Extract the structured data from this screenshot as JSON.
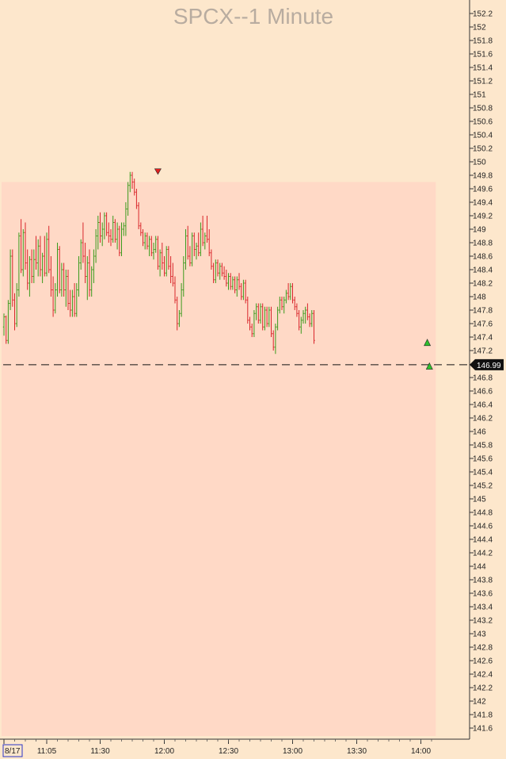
{
  "chart_data": {
    "type": "candlestick",
    "title": "SPCX--1 Minute",
    "ylim": [
      141.5,
      152.3
    ],
    "y_ticks": [
      152.2,
      152,
      151.8,
      151.6,
      151.4,
      151.2,
      151,
      150.8,
      150.6,
      150.4,
      150.2,
      150,
      149.8,
      149.6,
      149.4,
      149.2,
      149,
      148.8,
      148.6,
      148.4,
      148.2,
      148,
      147.8,
      147.6,
      147.4,
      147.2,
      146.8,
      146.6,
      146.4,
      146.2,
      146,
      145.8,
      145.6,
      145.4,
      145.2,
      145,
      144.8,
      144.6,
      144.4,
      144.2,
      144,
      143.8,
      143.6,
      143.4,
      143.2,
      143,
      142.8,
      142.6,
      142.4,
      142.2,
      142,
      141.8,
      141.6
    ],
    "y_tick_labels": [
      "152.2",
      "152",
      "151.8",
      "151.6",
      "151.4",
      "151.2",
      "151",
      "150.8",
      "150.6",
      "150.4",
      "150.2",
      "150",
      "149.8",
      "149.6",
      "149.4",
      "149.2",
      "149",
      "148.8",
      "148.6",
      "148.4",
      "148.2",
      "148",
      "147.8",
      "147.6",
      "147.4",
      "147.2",
      "146.8",
      "146.6",
      "146.4",
      "146.2",
      "146",
      "145.8",
      "145.6",
      "145.4",
      "145.2",
      "145",
      "144.8",
      "144.6",
      "144.4",
      "144.2",
      "144",
      "143.8",
      "143.6",
      "143.4",
      "143.2",
      "143",
      "142.8",
      "142.6",
      "142.4",
      "142.2",
      "142",
      "141.8",
      "141.6"
    ],
    "x_ticks": [
      {
        "minute": 0,
        "label": "8/17"
      },
      {
        "minute": 20,
        "label": "11:05"
      },
      {
        "minute": 45,
        "label": "11:30"
      },
      {
        "minute": 75,
        "label": "12:00"
      },
      {
        "minute": 105,
        "label": "12:30"
      },
      {
        "minute": 135,
        "label": "13:00"
      },
      {
        "minute": 165,
        "label": "13:30"
      },
      {
        "minute": 195,
        "label": "14:00"
      }
    ],
    "last_price": 146.99,
    "last_price_label": "146.99",
    "shaded_region": {
      "x_start": 0,
      "x_end": 202,
      "y_high": 149.7
    },
    "down_marker": {
      "minute": 72,
      "price": 149.85
    },
    "up_markers": [
      {
        "minute": 198,
        "price": 147.32
      },
      {
        "minute": 199,
        "price": 146.97
      }
    ],
    "up_color": "#3a9a1c",
    "down_color": "#d8262b",
    "shade_color": "#ffd9c6",
    "background_color": "#fde7cc",
    "candles": [
      {
        "o": 147.55,
        "h": 147.75,
        "l": 147.42,
        "c": 147.7
      },
      {
        "o": 147.7,
        "h": 147.72,
        "l": 147.3,
        "c": 147.35
      },
      {
        "o": 147.35,
        "h": 147.95,
        "l": 147.3,
        "c": 147.9
      },
      {
        "o": 147.9,
        "h": 148.7,
        "l": 147.8,
        "c": 148.6
      },
      {
        "o": 148.6,
        "h": 148.7,
        "l": 147.85,
        "c": 147.95
      },
      {
        "o": 147.95,
        "h": 148.05,
        "l": 147.5,
        "c": 147.6
      },
      {
        "o": 147.6,
        "h": 148.2,
        "l": 147.55,
        "c": 148.1
      },
      {
        "o": 148.1,
        "h": 148.95,
        "l": 148.0,
        "c": 148.9
      },
      {
        "o": 148.9,
        "h": 149.15,
        "l": 148.35,
        "c": 148.4
      },
      {
        "o": 148.4,
        "h": 149.0,
        "l": 148.3,
        "c": 148.95
      },
      {
        "o": 148.95,
        "h": 149.1,
        "l": 148.4,
        "c": 148.5
      },
      {
        "o": 148.5,
        "h": 148.7,
        "l": 148.1,
        "c": 148.2
      },
      {
        "o": 148.2,
        "h": 148.6,
        "l": 148.0,
        "c": 148.55
      },
      {
        "o": 148.55,
        "h": 148.7,
        "l": 148.2,
        "c": 148.3
      },
      {
        "o": 148.3,
        "h": 148.7,
        "l": 148.2,
        "c": 148.55
      },
      {
        "o": 148.55,
        "h": 148.9,
        "l": 148.4,
        "c": 148.5
      },
      {
        "o": 148.5,
        "h": 148.85,
        "l": 148.3,
        "c": 148.75
      },
      {
        "o": 148.75,
        "h": 148.9,
        "l": 148.3,
        "c": 148.4
      },
      {
        "o": 148.4,
        "h": 148.65,
        "l": 148.2,
        "c": 148.6
      },
      {
        "o": 148.6,
        "h": 148.9,
        "l": 148.3,
        "c": 148.35
      },
      {
        "o": 148.35,
        "h": 148.95,
        "l": 148.3,
        "c": 148.85
      },
      {
        "o": 148.85,
        "h": 149.05,
        "l": 148.35,
        "c": 148.4
      },
      {
        "o": 148.4,
        "h": 148.6,
        "l": 148.0,
        "c": 148.1
      },
      {
        "o": 148.1,
        "h": 148.3,
        "l": 147.7,
        "c": 147.8
      },
      {
        "o": 147.8,
        "h": 148.2,
        "l": 147.75,
        "c": 148.1
      },
      {
        "o": 148.1,
        "h": 148.8,
        "l": 148.0,
        "c": 148.7
      },
      {
        "o": 148.7,
        "h": 148.75,
        "l": 148.05,
        "c": 148.1
      },
      {
        "o": 148.1,
        "h": 148.5,
        "l": 148.0,
        "c": 148.4
      },
      {
        "o": 148.4,
        "h": 148.5,
        "l": 148.0,
        "c": 148.1
      },
      {
        "o": 148.1,
        "h": 148.4,
        "l": 147.85,
        "c": 148.3
      },
      {
        "o": 148.3,
        "h": 148.4,
        "l": 147.8,
        "c": 147.9
      },
      {
        "o": 147.9,
        "h": 148.1,
        "l": 147.7,
        "c": 147.8
      },
      {
        "o": 147.8,
        "h": 148.1,
        "l": 147.7,
        "c": 148.0
      },
      {
        "o": 148.0,
        "h": 148.2,
        "l": 147.7,
        "c": 147.75
      },
      {
        "o": 147.75,
        "h": 148.2,
        "l": 147.7,
        "c": 148.1
      },
      {
        "o": 148.1,
        "h": 148.6,
        "l": 148.0,
        "c": 148.5
      },
      {
        "o": 148.5,
        "h": 148.85,
        "l": 148.4,
        "c": 148.8
      },
      {
        "o": 148.8,
        "h": 149.1,
        "l": 148.5,
        "c": 148.6
      },
      {
        "o": 148.6,
        "h": 148.8,
        "l": 148.2,
        "c": 148.3
      },
      {
        "o": 148.3,
        "h": 148.6,
        "l": 147.95,
        "c": 148.5
      },
      {
        "o": 148.5,
        "h": 148.7,
        "l": 148.0,
        "c": 148.1
      },
      {
        "o": 148.1,
        "h": 148.45,
        "l": 148.0,
        "c": 148.4
      },
      {
        "o": 148.4,
        "h": 148.7,
        "l": 148.2,
        "c": 148.6
      },
      {
        "o": 148.6,
        "h": 149.0,
        "l": 148.5,
        "c": 148.9
      },
      {
        "o": 148.9,
        "h": 149.2,
        "l": 148.7,
        "c": 149.1
      },
      {
        "o": 149.1,
        "h": 149.25,
        "l": 148.8,
        "c": 148.9
      },
      {
        "o": 148.9,
        "h": 149.1,
        "l": 148.75,
        "c": 149.0
      },
      {
        "o": 149.0,
        "h": 149.25,
        "l": 148.85,
        "c": 149.2
      },
      {
        "o": 149.2,
        "h": 149.25,
        "l": 148.9,
        "c": 148.95
      },
      {
        "o": 148.95,
        "h": 149.1,
        "l": 148.8,
        "c": 148.9
      },
      {
        "o": 148.9,
        "h": 149.0,
        "l": 148.75,
        "c": 148.85
      },
      {
        "o": 148.85,
        "h": 149.2,
        "l": 148.8,
        "c": 149.1
      },
      {
        "o": 149.1,
        "h": 149.15,
        "l": 148.8,
        "c": 148.85
      },
      {
        "o": 148.85,
        "h": 149.1,
        "l": 148.7,
        "c": 149.0
      },
      {
        "o": 149.0,
        "h": 149.05,
        "l": 148.6,
        "c": 148.65
      },
      {
        "o": 148.65,
        "h": 149.1,
        "l": 148.6,
        "c": 149.0
      },
      {
        "o": 149.0,
        "h": 149.1,
        "l": 148.9,
        "c": 149.05
      },
      {
        "o": 149.05,
        "h": 149.4,
        "l": 148.9,
        "c": 149.3
      },
      {
        "o": 149.3,
        "h": 149.7,
        "l": 149.2,
        "c": 149.65
      },
      {
        "o": 149.65,
        "h": 149.85,
        "l": 149.55,
        "c": 149.8
      },
      {
        "o": 149.8,
        "h": 149.85,
        "l": 149.6,
        "c": 149.7
      },
      {
        "o": 149.7,
        "h": 149.75,
        "l": 149.5,
        "c": 149.55
      },
      {
        "o": 149.55,
        "h": 149.6,
        "l": 149.3,
        "c": 149.35
      },
      {
        "o": 149.35,
        "h": 149.4,
        "l": 149.0,
        "c": 149.05
      },
      {
        "o": 149.05,
        "h": 149.1,
        "l": 148.9,
        "c": 148.95
      },
      {
        "o": 148.95,
        "h": 149.0,
        "l": 148.75,
        "c": 148.8
      },
      {
        "o": 148.8,
        "h": 148.95,
        "l": 148.7,
        "c": 148.9
      },
      {
        "o": 148.9,
        "h": 148.95,
        "l": 148.7,
        "c": 148.75
      },
      {
        "o": 148.75,
        "h": 148.9,
        "l": 148.6,
        "c": 148.85
      },
      {
        "o": 148.85,
        "h": 148.9,
        "l": 148.6,
        "c": 148.65
      },
      {
        "o": 148.65,
        "h": 148.8,
        "l": 148.55,
        "c": 148.7
      },
      {
        "o": 148.7,
        "h": 148.9,
        "l": 148.65,
        "c": 148.85
      },
      {
        "o": 148.85,
        "h": 148.9,
        "l": 148.4,
        "c": 148.45
      },
      {
        "o": 148.45,
        "h": 148.7,
        "l": 148.3,
        "c": 148.65
      },
      {
        "o": 148.65,
        "h": 148.8,
        "l": 148.4,
        "c": 148.5
      },
      {
        "o": 148.5,
        "h": 148.6,
        "l": 148.3,
        "c": 148.35
      },
      {
        "o": 148.35,
        "h": 148.75,
        "l": 148.3,
        "c": 148.7
      },
      {
        "o": 148.7,
        "h": 148.75,
        "l": 148.4,
        "c": 148.45
      },
      {
        "o": 148.45,
        "h": 148.6,
        "l": 148.2,
        "c": 148.3
      },
      {
        "o": 148.3,
        "h": 148.5,
        "l": 148.15,
        "c": 148.2
      },
      {
        "o": 148.2,
        "h": 148.3,
        "l": 147.9,
        "c": 147.95
      },
      {
        "o": 147.95,
        "h": 148.0,
        "l": 147.5,
        "c": 147.6
      },
      {
        "o": 147.6,
        "h": 147.8,
        "l": 147.55,
        "c": 147.75
      },
      {
        "o": 147.75,
        "h": 148.2,
        "l": 147.7,
        "c": 148.1
      },
      {
        "o": 148.1,
        "h": 148.6,
        "l": 148.0,
        "c": 148.5
      },
      {
        "o": 148.5,
        "h": 149.0,
        "l": 148.4,
        "c": 148.9
      },
      {
        "o": 148.9,
        "h": 149.05,
        "l": 148.55,
        "c": 148.6
      },
      {
        "o": 148.6,
        "h": 148.75,
        "l": 148.45,
        "c": 148.5
      },
      {
        "o": 148.5,
        "h": 148.95,
        "l": 148.45,
        "c": 148.9
      },
      {
        "o": 148.9,
        "h": 148.95,
        "l": 148.6,
        "c": 148.7
      },
      {
        "o": 148.7,
        "h": 148.8,
        "l": 148.55,
        "c": 148.75
      },
      {
        "o": 148.75,
        "h": 148.95,
        "l": 148.6,
        "c": 148.65
      },
      {
        "o": 148.65,
        "h": 149.1,
        "l": 148.6,
        "c": 149.0
      },
      {
        "o": 149.0,
        "h": 149.2,
        "l": 148.75,
        "c": 148.8
      },
      {
        "o": 148.8,
        "h": 148.95,
        "l": 148.7,
        "c": 148.9
      },
      {
        "o": 148.9,
        "h": 149.2,
        "l": 148.8,
        "c": 148.85
      },
      {
        "o": 148.85,
        "h": 149.0,
        "l": 148.6,
        "c": 148.65
      },
      {
        "o": 148.65,
        "h": 148.7,
        "l": 148.4,
        "c": 148.45
      },
      {
        "o": 148.45,
        "h": 148.5,
        "l": 148.2,
        "c": 148.25
      },
      {
        "o": 148.25,
        "h": 148.55,
        "l": 148.2,
        "c": 148.5
      },
      {
        "o": 148.5,
        "h": 148.55,
        "l": 148.3,
        "c": 148.35
      },
      {
        "o": 148.35,
        "h": 148.5,
        "l": 148.25,
        "c": 148.45
      },
      {
        "o": 148.45,
        "h": 148.5,
        "l": 148.3,
        "c": 148.35
      },
      {
        "o": 148.35,
        "h": 148.45,
        "l": 148.25,
        "c": 148.3
      },
      {
        "o": 148.3,
        "h": 148.4,
        "l": 148.15,
        "c": 148.2
      },
      {
        "o": 148.2,
        "h": 148.35,
        "l": 148.1,
        "c": 148.3
      },
      {
        "o": 148.3,
        "h": 148.35,
        "l": 148.1,
        "c": 148.15
      },
      {
        "o": 148.15,
        "h": 148.3,
        "l": 148.1,
        "c": 148.25
      },
      {
        "o": 148.25,
        "h": 148.3,
        "l": 148.05,
        "c": 148.1
      },
      {
        "o": 148.1,
        "h": 148.3,
        "l": 148.0,
        "c": 148.25
      },
      {
        "o": 148.25,
        "h": 148.35,
        "l": 148.1,
        "c": 148.15
      },
      {
        "o": 148.15,
        "h": 148.2,
        "l": 147.95,
        "c": 148.0
      },
      {
        "o": 148.0,
        "h": 148.25,
        "l": 147.95,
        "c": 148.2
      },
      {
        "o": 148.2,
        "h": 148.25,
        "l": 147.9,
        "c": 147.95
      },
      {
        "o": 147.95,
        "h": 148.0,
        "l": 147.6,
        "c": 147.65
      },
      {
        "o": 147.65,
        "h": 147.7,
        "l": 147.5,
        "c": 147.55
      },
      {
        "o": 147.55,
        "h": 147.6,
        "l": 147.4,
        "c": 147.45
      },
      {
        "o": 147.45,
        "h": 147.8,
        "l": 147.4,
        "c": 147.75
      },
      {
        "o": 147.75,
        "h": 147.9,
        "l": 147.65,
        "c": 147.85
      },
      {
        "o": 147.85,
        "h": 147.9,
        "l": 147.6,
        "c": 147.65
      },
      {
        "o": 147.65,
        "h": 147.9,
        "l": 147.6,
        "c": 147.85
      },
      {
        "o": 147.85,
        "h": 147.9,
        "l": 147.5,
        "c": 147.55
      },
      {
        "o": 147.55,
        "h": 147.85,
        "l": 147.5,
        "c": 147.8
      },
      {
        "o": 147.8,
        "h": 147.85,
        "l": 147.55,
        "c": 147.6
      },
      {
        "o": 147.6,
        "h": 147.85,
        "l": 147.55,
        "c": 147.8
      },
      {
        "o": 147.8,
        "h": 147.85,
        "l": 147.4,
        "c": 147.45
      },
      {
        "o": 147.45,
        "h": 147.5,
        "l": 147.2,
        "c": 147.25
      },
      {
        "o": 147.25,
        "h": 147.6,
        "l": 147.15,
        "c": 147.55
      },
      {
        "o": 147.55,
        "h": 147.85,
        "l": 147.5,
        "c": 147.8
      },
      {
        "o": 147.8,
        "h": 148.0,
        "l": 147.75,
        "c": 147.95
      },
      {
        "o": 147.95,
        "h": 148.0,
        "l": 147.8,
        "c": 147.85
      },
      {
        "o": 147.85,
        "h": 148.0,
        "l": 147.75,
        "c": 147.95
      },
      {
        "o": 147.95,
        "h": 148.1,
        "l": 147.9,
        "c": 148.05
      },
      {
        "o": 148.05,
        "h": 148.2,
        "l": 147.95,
        "c": 148.0
      },
      {
        "o": 148.0,
        "h": 148.2,
        "l": 147.95,
        "c": 148.15
      },
      {
        "o": 148.15,
        "h": 148.2,
        "l": 147.9,
        "c": 147.95
      },
      {
        "o": 147.95,
        "h": 148.0,
        "l": 147.8,
        "c": 147.85
      },
      {
        "o": 147.85,
        "h": 147.9,
        "l": 147.7,
        "c": 147.75
      },
      {
        "o": 147.75,
        "h": 147.8,
        "l": 147.5,
        "c": 147.55
      },
      {
        "o": 147.55,
        "h": 147.7,
        "l": 147.45,
        "c": 147.65
      },
      {
        "o": 147.65,
        "h": 147.8,
        "l": 147.6,
        "c": 147.75
      },
      {
        "o": 147.75,
        "h": 147.85,
        "l": 147.6,
        "c": 147.8
      },
      {
        "o": 147.8,
        "h": 147.9,
        "l": 147.65,
        "c": 147.7
      },
      {
        "o": 147.7,
        "h": 147.75,
        "l": 147.55,
        "c": 147.6
      },
      {
        "o": 147.6,
        "h": 147.8,
        "l": 147.55,
        "c": 147.75
      },
      {
        "o": 147.75,
        "h": 147.8,
        "l": 147.3,
        "c": 147.35
      }
    ]
  }
}
